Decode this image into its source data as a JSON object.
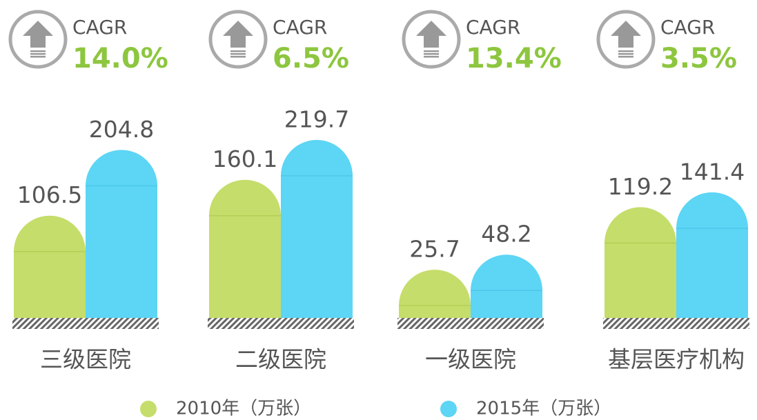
{
  "chart_data": {
    "type": "bar",
    "categories": [
      "三级医院",
      "二级医院",
      "一级医院",
      "基层医疗机构"
    ],
    "series": [
      {
        "name": "2010年（万张）",
        "color": "#c5dd6a",
        "values": [
          106.5,
          160.1,
          25.7,
          119.2
        ]
      },
      {
        "name": "2015年（万张）",
        "color": "#5dd5f5",
        "values": [
          204.8,
          219.7,
          48.2,
          141.4
        ]
      }
    ],
    "cagr": {
      "label": "CAGR",
      "values": [
        14.0,
        6.5,
        13.4,
        3.5
      ],
      "value_labels": [
        "14.0%",
        "6.5%",
        "13.4%",
        "3.5%"
      ],
      "color": "#8dc63f"
    }
  }
}
